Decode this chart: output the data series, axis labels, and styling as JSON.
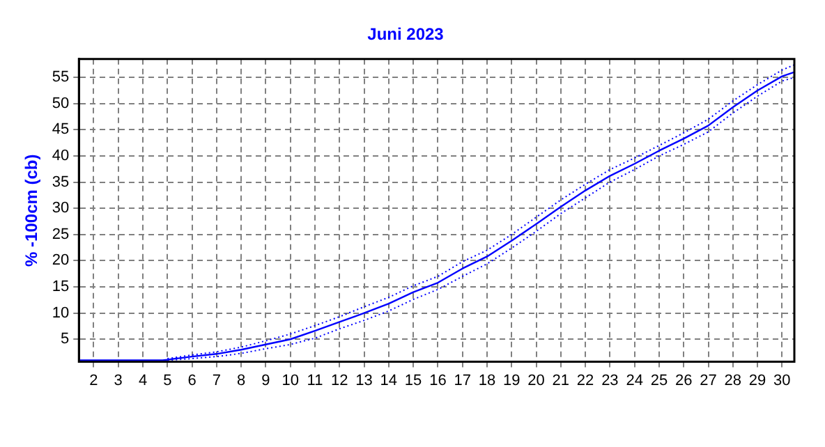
{
  "chart_data": {
    "type": "line",
    "title": "Juni 2023",
    "ylabel": "% -100cm (cb)",
    "x": [
      1.4,
      4.8,
      5,
      6,
      7,
      8,
      9,
      10,
      11,
      12,
      13,
      14,
      15,
      16,
      17,
      18,
      19,
      20,
      21,
      22,
      23,
      24,
      25,
      26,
      27,
      28,
      29,
      30,
      30.5
    ],
    "series": [
      {
        "color": "#0000ff",
        "line_style": "dotted",
        "values": [
          null,
          null,
          1,
          1.3,
          1.7,
          2.3,
          3.2,
          4,
          5.2,
          7,
          8.6,
          10.4,
          12.6,
          14.5,
          17,
          19.4,
          22.4,
          25.6,
          29,
          32,
          35,
          37.4,
          40,
          42.2,
          44.6,
          48.2,
          51.4,
          54.3,
          55
        ]
      },
      {
        "color": "#0000ff",
        "line_style": "dotted",
        "values": [
          null,
          null,
          1.3,
          2,
          2.6,
          3.5,
          4.7,
          6,
          7.6,
          9.3,
          11.2,
          13,
          15.2,
          17,
          19.8,
          22,
          25,
          28.3,
          31.6,
          34.6,
          37.4,
          39.6,
          42,
          44.4,
          47,
          50.5,
          53.6,
          56.4,
          57.4
        ]
      },
      {
        "color": "#0000ff",
        "line_style": "solid",
        "values": [
          1,
          1,
          1.1,
          1.7,
          2.2,
          3,
          4,
          5,
          6.6,
          8.3,
          10,
          11.8,
          14,
          15.8,
          18.5,
          20.8,
          23.8,
          27,
          30.3,
          33.4,
          36.2,
          38.5,
          41,
          43.3,
          45.8,
          49.3,
          52.5,
          55.2,
          56
        ]
      }
    ],
    "xlim": [
      1.4,
      30.5
    ],
    "xticks": [
      2,
      3,
      4,
      5,
      6,
      7,
      8,
      9,
      10,
      11,
      12,
      13,
      14,
      15,
      16,
      17,
      18,
      19,
      20,
      21,
      22,
      23,
      24,
      25,
      26,
      27,
      28,
      29,
      30
    ],
    "ylim": [
      0.7,
      58.5
    ],
    "yticks": [
      5,
      10,
      15,
      20,
      25,
      30,
      35,
      40,
      45,
      50,
      55
    ],
    "grid": true,
    "legend": false,
    "marker": "none"
  }
}
